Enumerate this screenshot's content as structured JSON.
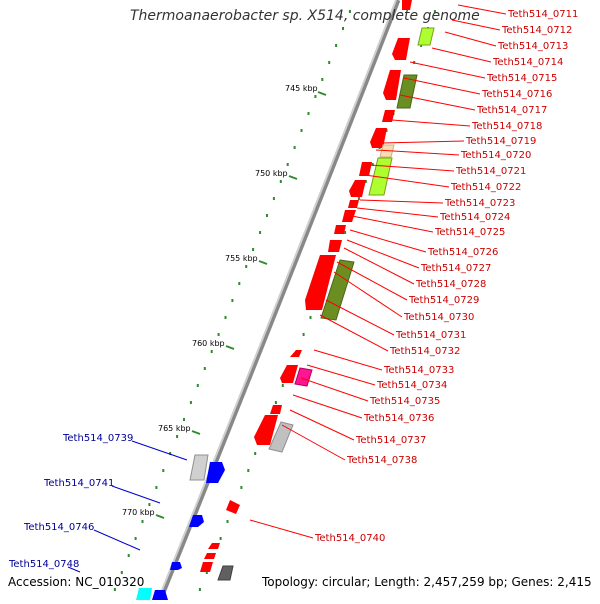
{
  "title": "Thermoanaerobacter sp. X514, complete genome",
  "accession": "Accession: NC_010320",
  "summary": "Topology: circular; Length: 2,457,259 bp; Genes: 2,415",
  "ticks": [
    "745 kbp",
    "750 kbp",
    "755 kbp",
    "760 kbp",
    "765 kbp",
    "770 kbp"
  ],
  "genes_right": [
    "Teth514_0711",
    "Teth514_0712",
    "Teth514_0713",
    "Teth514_0714",
    "Teth514_0715",
    "Teth514_0716",
    "Teth514_0717",
    "Teth514_0718",
    "Teth514_0719",
    "Teth514_0720",
    "Teth514_0721",
    "Teth514_0722",
    "Teth514_0723",
    "Teth514_0724",
    "Teth514_0725",
    "Teth514_0726",
    "Teth514_0727",
    "Teth514_0728",
    "Teth514_0729",
    "Teth514_0730",
    "Teth514_0731",
    "Teth514_0732",
    "Teth514_0733",
    "Teth514_0734",
    "Teth514_0735",
    "Teth514_0736",
    "Teth514_0737",
    "Teth514_0738",
    "Teth514_0740"
  ],
  "genes_left": [
    "Teth514_0739",
    "Teth514_0741",
    "Teth514_0746",
    "Teth514_0748"
  ],
  "colors": {
    "forward_gene": "#ff0000",
    "reverse_gene": "#0000ff",
    "label_red": "#cc0000",
    "label_blue": "#000099",
    "backbone": "#888888",
    "tick": "#2e8b2e",
    "cog_green": "#6b8e23",
    "cog_lime": "#adff2f",
    "cog_tan": "#f5deb3",
    "cog_magenta": "#ff1493",
    "cog_gray": "#c0c0c0",
    "cog_cyan": "#00ffff"
  }
}
